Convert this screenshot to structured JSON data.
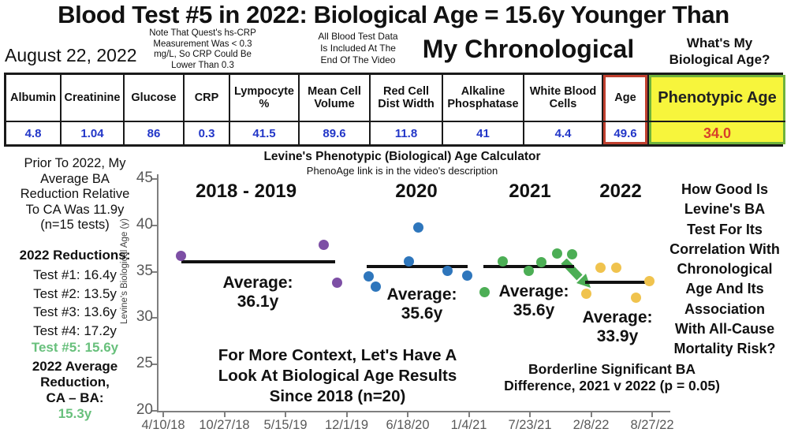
{
  "header": {
    "title_line1": "Blood Test #5 in 2022: Biological Age = 15.6y Younger Than",
    "title_line2": "My Chronological",
    "date": "August 22, 2022",
    "crp_note": "Note That Quest's hs-CRP\nMeasurement Was < 0.3\nmg/L, So CRP Could Be\nLower Than 0.3",
    "data_note": "All Blood Test Data\nIs Included At The\nEnd Of The Video",
    "question": "What's My\nBiological Age?"
  },
  "results_table": {
    "columns": [
      {
        "label": "Albumin"
      },
      {
        "label": "Creatinine"
      },
      {
        "label": "Glucose"
      },
      {
        "label": "CRP"
      },
      {
        "label": "Lympocyte\n%"
      },
      {
        "label": "Mean Cell\nVolume"
      },
      {
        "label": "Red Cell\nDist Width"
      },
      {
        "label": "Alkaline\nPhosphatase"
      },
      {
        "label": "White Blood\nCells"
      },
      {
        "label": "Age",
        "style": "age"
      },
      {
        "label": "Phenotypic Age",
        "style": "pheno"
      }
    ],
    "values": [
      "4.8",
      "1.04",
      "86",
      "0.3",
      "41.5",
      "89.6",
      "11.8",
      "41",
      "4.4",
      "49.6",
      "34.0"
    ]
  },
  "sidebar_left": {
    "prior_note": "Prior To 2022, My\nAverage BA\nReduction Relative\nTo CA Was 11.9y\n(n=15 tests)",
    "reductions_heading": "2022 Reductions:",
    "tests": "Test #1: 16.4y\nTest #2: 13.5y\nTest #3: 13.6y\nTest #4: 17.2y",
    "test5": "Test #5: 15.6y",
    "average_reduction_label": "2022 Average\nReduction,\nCA – BA:",
    "average_reduction_value": "15.3y"
  },
  "sidebar_right": {
    "question": "How Good Is\nLevine's BA\nTest For Its\nCorrelation With\nChronological\nAge And Its\nAssociation\nWith All-Cause\nMortality Risk?"
  },
  "chart_data": {
    "type": "scatter",
    "title": "Levine's Phenotypic (Biological) Age Calculator",
    "subtitle": "PhenoAge link is in the video's description",
    "ylabel": "Levine's Biological Age (y)",
    "ylim": [
      20,
      45
    ],
    "yticks": [
      45,
      40,
      35,
      30,
      25,
      20
    ],
    "xticklabels": [
      "4/10/18",
      "10/27/18",
      "5/15/19",
      "12/1/19",
      "6/18/20",
      "1/4/21",
      "7/23/21",
      "2/8/22",
      "8/27/22"
    ],
    "series": [
      {
        "name": "2018 - 2019",
        "color": "#7d4fa5",
        "points": [
          {
            "x": 0.045,
            "y": 36.7
          },
          {
            "x": 0.326,
            "y": 37.9
          },
          {
            "x": 0.352,
            "y": 33.8
          }
        ]
      },
      {
        "name": "2020",
        "color": "#2e76bc",
        "points": [
          {
            "x": 0.414,
            "y": 34.5
          },
          {
            "x": 0.429,
            "y": 33.4
          },
          {
            "x": 0.494,
            "y": 36.1
          },
          {
            "x": 0.513,
            "y": 39.8
          },
          {
            "x": 0.569,
            "y": 35.1
          },
          {
            "x": 0.608,
            "y": 34.6
          }
        ]
      },
      {
        "name": "2021",
        "color": "#4cae55",
        "points": [
          {
            "x": 0.643,
            "y": 32.8
          },
          {
            "x": 0.678,
            "y": 36.1
          },
          {
            "x": 0.73,
            "y": 35.1
          },
          {
            "x": 0.755,
            "y": 36.0
          },
          {
            "x": 0.786,
            "y": 37.0
          },
          {
            "x": 0.814,
            "y": 36.9
          }
        ]
      },
      {
        "name": "2022",
        "color": "#f0c34e",
        "points": [
          {
            "x": 0.842,
            "y": 32.6
          },
          {
            "x": 0.87,
            "y": 35.4
          },
          {
            "x": 0.902,
            "y": 35.4
          },
          {
            "x": 0.94,
            "y": 32.2
          },
          {
            "x": 0.966,
            "y": 34.0
          }
        ]
      }
    ],
    "average_lines": [
      {
        "label": "Average:\n36.1y",
        "y": 36.1,
        "x1": 0.047,
        "x2": 0.349
      },
      {
        "label": "Average:\n35.6y",
        "y": 35.6,
        "x1": 0.411,
        "x2": 0.609
      },
      {
        "label": "Average:\n35.6y",
        "y": 35.6,
        "x1": 0.64,
        "x2": 0.819
      },
      {
        "label": "Average:\n33.9y",
        "y": 33.9,
        "x1": 0.84,
        "x2": 0.972
      }
    ],
    "annotations": {
      "context": "For More Context, Let's Have A\nLook At Biological Age Results\nSince 2018 (n=20)",
      "significance": "Borderline Significant BA\nDifference, 2021 v 2022 (p = 0.05)"
    },
    "legend_position": "none",
    "grid": false
  },
  "colors": {
    "table_value_blue": "#2236c8",
    "phenotypic_bg_yellow": "#f7f53c",
    "phenotypic_value_red": "#d8402a",
    "age_border_red": "#c0402f",
    "phenotypic_border_green": "#6fb33c",
    "sidebar_green": "#68c07c",
    "axis_gray": "#595959",
    "arrow_green": "#4cae55"
  }
}
